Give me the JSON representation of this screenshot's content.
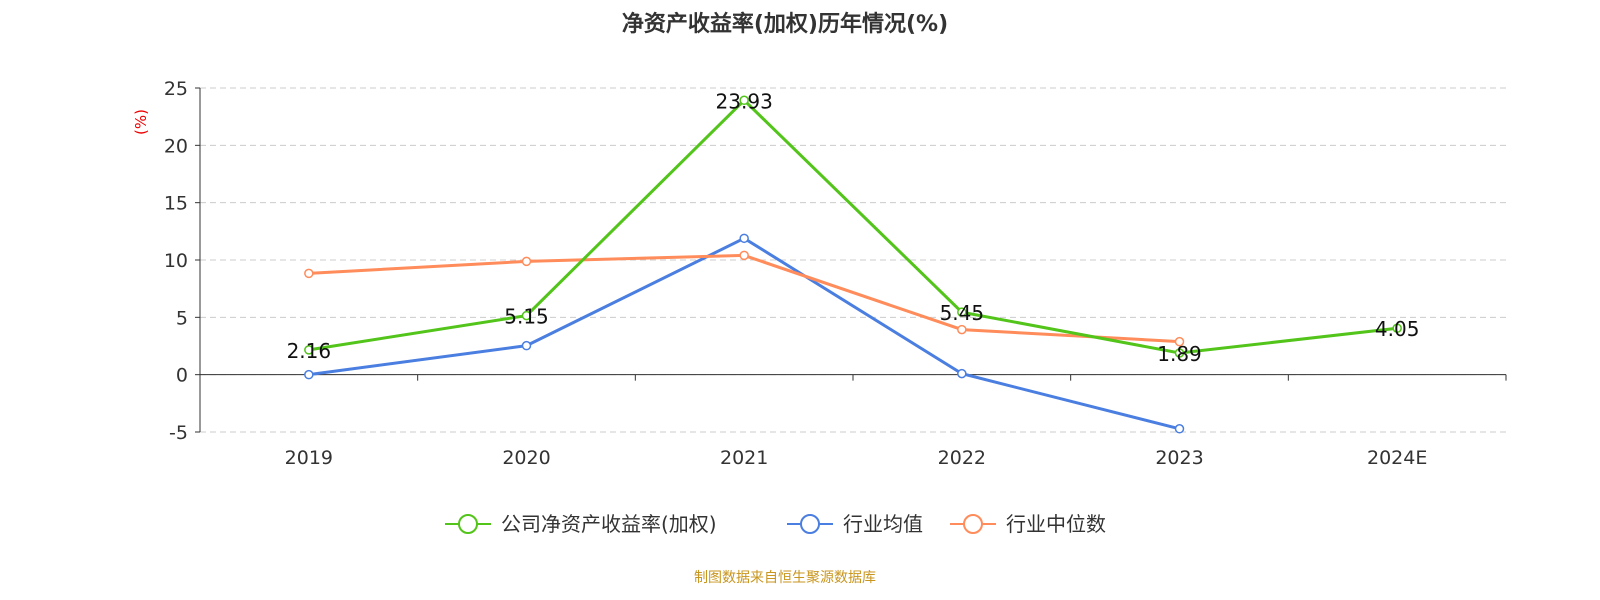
{
  "chart_data": {
    "type": "line",
    "title": "净资产收益率(加权)历年情况(%)",
    "ylabel": "(%)",
    "categories": [
      "2019",
      "2020",
      "2021",
      "2022",
      "2023",
      "2024E"
    ],
    "ylim": [
      -5,
      25
    ],
    "yticks": [
      -5,
      0,
      5,
      10,
      15,
      20,
      25
    ],
    "grid": true,
    "legend_position": "bottom",
    "series": [
      {
        "name": "公司净资产收益率(加权)",
        "color": "#52c41a",
        "values": [
          2.16,
          5.15,
          23.93,
          5.45,
          1.89,
          4.05
        ],
        "labels": [
          "2.16",
          "5.15",
          "23.93",
          "5.45",
          "1.89",
          "4.05"
        ]
      },
      {
        "name": "行业均值",
        "color": "#4a7ee0",
        "values": [
          0.0,
          2.53,
          11.89,
          0.09,
          -4.72,
          null
        ]
      },
      {
        "name": "行业中位数",
        "color": "#ff8c5a",
        "values": [
          8.83,
          9.88,
          10.4,
          3.93,
          2.88,
          null
        ]
      }
    ]
  },
  "footer": "制图数据来自恒生聚源数据库"
}
